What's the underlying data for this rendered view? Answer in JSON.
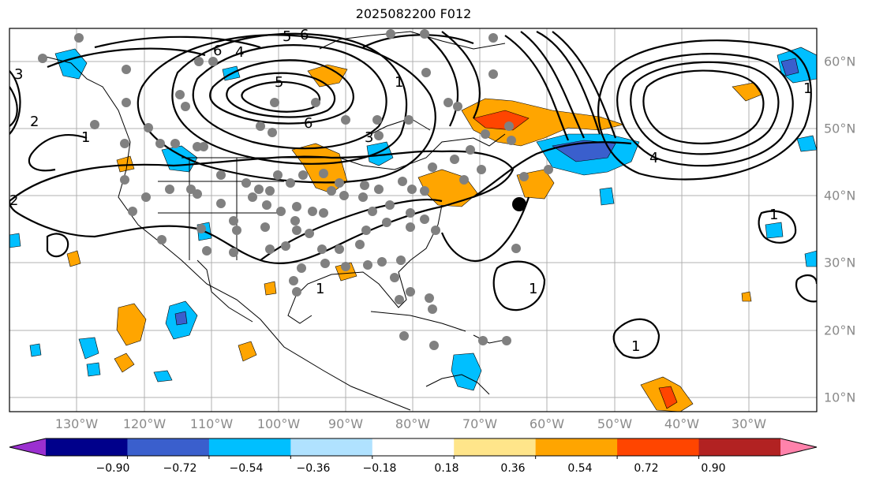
{
  "title": "2025082200 F012",
  "longitude_labels": [
    "130°W",
    "120°W",
    "110°W",
    "100°W",
    "90°W",
    "80°W",
    "70°W",
    "60°W",
    "50°W",
    "40°W",
    "30°W"
  ],
  "latitude_labels": [
    "60°N",
    "50°N",
    "40°N",
    "30°N",
    "20°N",
    "10°N"
  ],
  "colorbar": {
    "tick_labels": [
      "−0.90",
      "−0.72",
      "−0.54",
      "−0.36",
      "−0.18",
      "0.18",
      "0.36",
      "0.54",
      "0.72",
      "0.90"
    ],
    "colors": [
      "#9b30d0",
      "#00008b",
      "#3a5fcd",
      "#00bfff",
      "#b0e2ff",
      "#ffffff",
      "#ffe58a",
      "#ffa500",
      "#ff4500",
      "#b22222",
      "#ff82ab"
    ]
  },
  "contour_labels": [
    "1",
    "1",
    "1",
    "1",
    "1",
    "1",
    "1",
    "2",
    "2",
    "3",
    "3",
    "4",
    "4",
    "5",
    "5",
    "6",
    "6",
    "6"
  ],
  "colors": {
    "contour": "#000000",
    "station": "#808080",
    "grid": "#b0b0b0",
    "coast": "#000000",
    "marker": "#000000"
  }
}
